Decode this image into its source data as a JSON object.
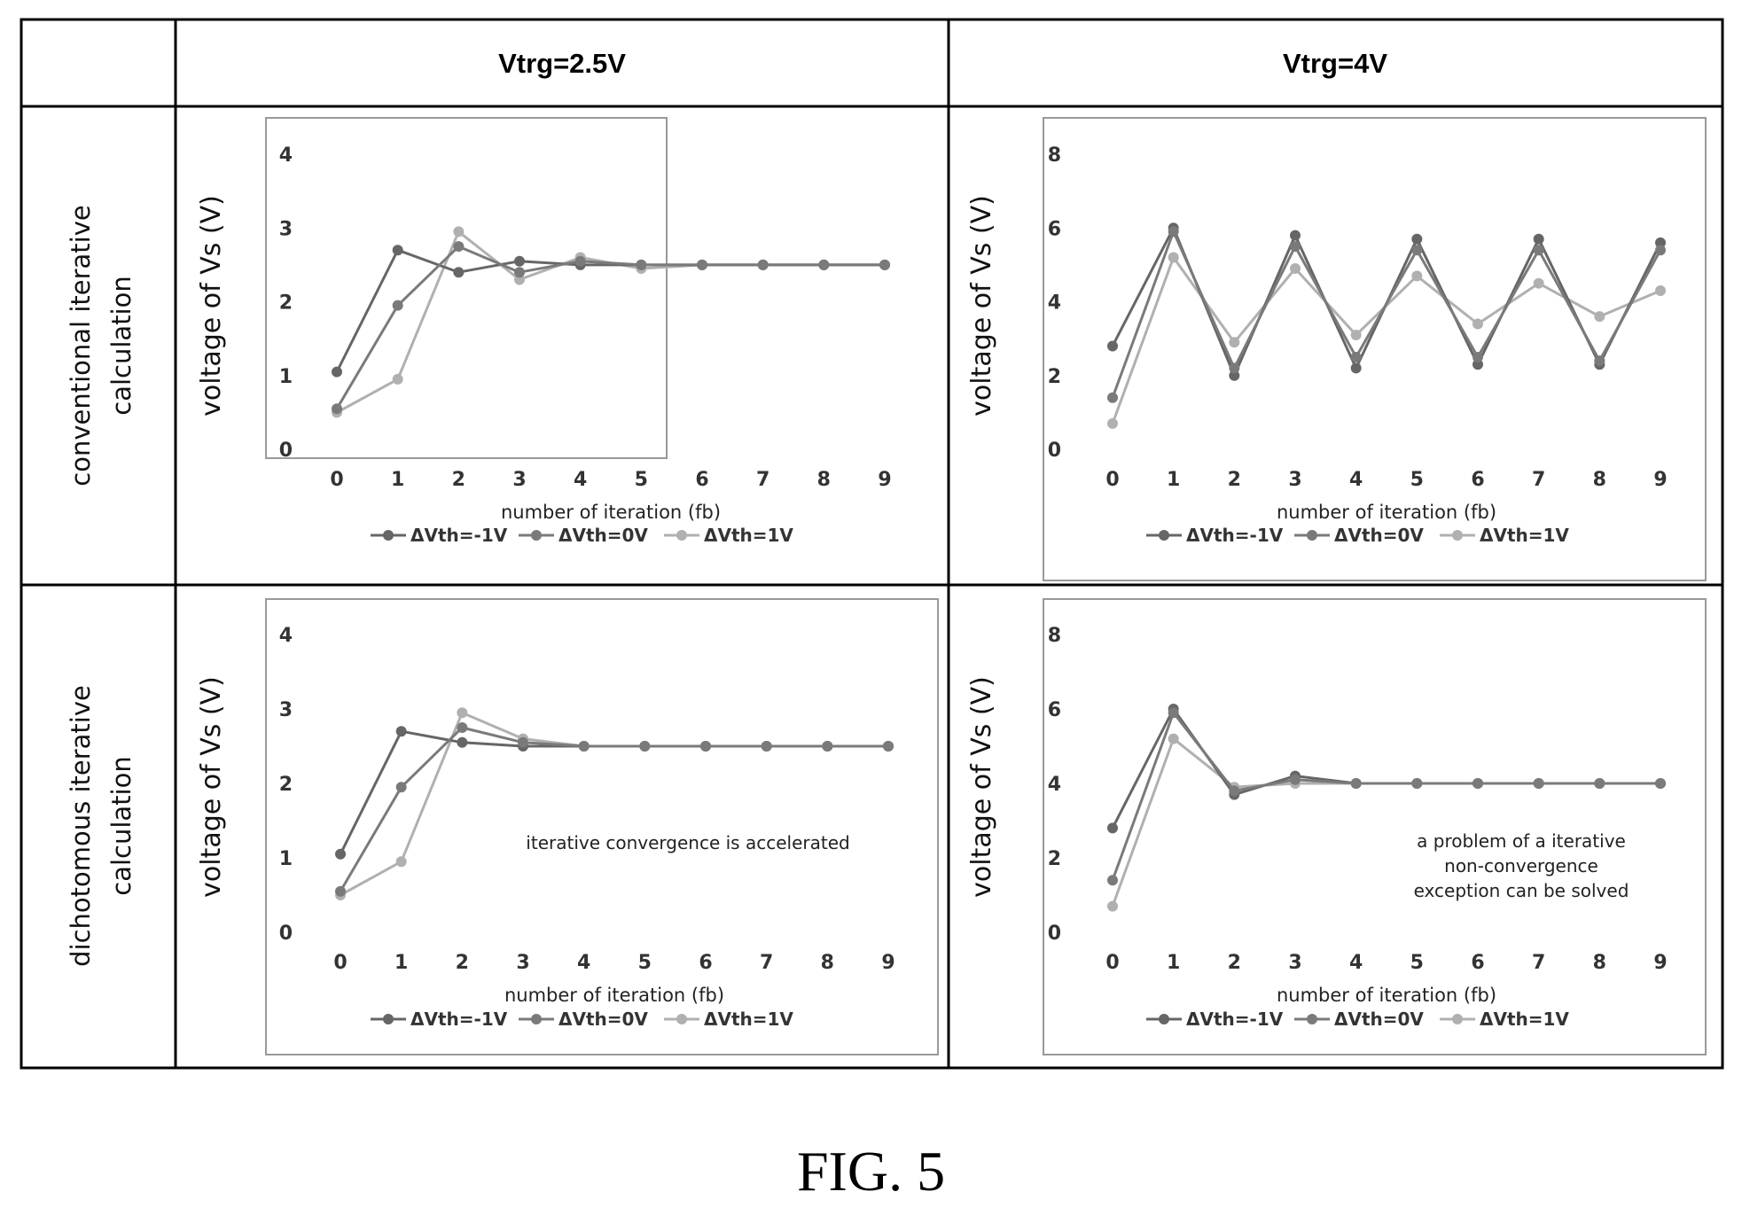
{
  "table": {
    "column_headers": [
      "Vtrg=2.5V",
      "Vtrg=4V"
    ],
    "row_headers": [
      [
        "conventional iterative",
        "calculation"
      ],
      [
        "dichotomous iterative",
        "calculation"
      ]
    ]
  },
  "figure_caption": "FIG. 5",
  "chart_data": [
    {
      "type": "line",
      "title": "",
      "xlabel": "number of iteration (fb)",
      "ylabel": "voltage of Vs (V)",
      "x": [
        0,
        1,
        2,
        3,
        4,
        5,
        6,
        7,
        8,
        9
      ],
      "xlim": [
        0,
        9
      ],
      "ylim": [
        0,
        4
      ],
      "yticks": [
        0,
        1,
        2,
        3,
        4
      ],
      "grid": false,
      "legend": "bottom",
      "annotation": "",
      "series": [
        {
          "name": "ΔVth=-1V",
          "color": "#666666",
          "values": [
            1.05,
            2.7,
            2.4,
            2.55,
            2.5,
            2.5,
            2.5,
            2.5,
            2.5,
            2.5
          ]
        },
        {
          "name": "ΔVth=0V",
          "color": "#7a7a7a",
          "values": [
            0.55,
            1.95,
            2.75,
            2.4,
            2.55,
            2.5,
            2.5,
            2.5,
            2.5,
            2.5
          ]
        },
        {
          "name": "ΔVth=1V",
          "color": "#b0b0b0",
          "values": [
            0.5,
            0.95,
            2.95,
            2.3,
            2.6,
            2.45,
            2.5,
            2.5,
            2.5,
            2.5
          ]
        }
      ]
    },
    {
      "type": "line",
      "title": "",
      "xlabel": "number of iteration (fb)",
      "ylabel": "voltage of Vs (V)",
      "x": [
        0,
        1,
        2,
        3,
        4,
        5,
        6,
        7,
        8,
        9
      ],
      "xlim": [
        0,
        9
      ],
      "ylim": [
        0,
        8
      ],
      "yticks": [
        0,
        2,
        4,
        6,
        8
      ],
      "grid": false,
      "legend": "bottom",
      "annotation": "",
      "series": [
        {
          "name": "ΔVth=-1V",
          "color": "#666666",
          "values": [
            2.8,
            6.0,
            2.0,
            5.8,
            2.2,
            5.7,
            2.3,
            5.7,
            2.3,
            5.6
          ]
        },
        {
          "name": "ΔVth=0V",
          "color": "#7a7a7a",
          "values": [
            1.4,
            5.9,
            2.2,
            5.5,
            2.5,
            5.4,
            2.5,
            5.4,
            2.4,
            5.4
          ]
        },
        {
          "name": "ΔVth=1V",
          "color": "#b0b0b0",
          "values": [
            0.7,
            5.2,
            2.9,
            4.9,
            3.1,
            4.7,
            3.4,
            4.5,
            3.6,
            4.3
          ]
        }
      ]
    },
    {
      "type": "line",
      "title": "",
      "xlabel": "number of iteration (fb)",
      "ylabel": "voltage of Vs (V)",
      "x": [
        0,
        1,
        2,
        3,
        4,
        5,
        6,
        7,
        8,
        9
      ],
      "xlim": [
        0,
        9
      ],
      "ylim": [
        0,
        4
      ],
      "yticks": [
        0,
        1,
        2,
        3,
        4
      ],
      "grid": false,
      "legend": "bottom",
      "annotation": "iterative convergence is accelerated",
      "series": [
        {
          "name": "ΔVth=-1V",
          "color": "#666666",
          "values": [
            1.05,
            2.7,
            2.55,
            2.5,
            2.5,
            2.5,
            2.5,
            2.5,
            2.5,
            2.5
          ]
        },
        {
          "name": "ΔVth=0V",
          "color": "#7a7a7a",
          "values": [
            0.55,
            1.95,
            2.75,
            2.55,
            2.5,
            2.5,
            2.5,
            2.5,
            2.5,
            2.5
          ]
        },
        {
          "name": "ΔVth=1V",
          "color": "#b0b0b0",
          "values": [
            0.5,
            0.95,
            2.95,
            2.6,
            2.5,
            2.5,
            2.5,
            2.5,
            2.5,
            2.5
          ]
        }
      ]
    },
    {
      "type": "line",
      "title": "",
      "xlabel": "number of iteration (fb)",
      "ylabel": "voltage of Vs (V)",
      "x": [
        0,
        1,
        2,
        3,
        4,
        5,
        6,
        7,
        8,
        9
      ],
      "xlim": [
        0,
        9
      ],
      "ylim": [
        0,
        8
      ],
      "yticks": [
        0,
        2,
        4,
        6,
        8
      ],
      "grid": false,
      "legend": "bottom",
      "annotation": "a problem of a iterative\nnon-convergence\nexception can be solved",
      "series": [
        {
          "name": "ΔVth=-1V",
          "color": "#666666",
          "values": [
            2.8,
            6.0,
            3.7,
            4.2,
            4.0,
            4.0,
            4.0,
            4.0,
            4.0,
            4.0
          ]
        },
        {
          "name": "ΔVth=0V",
          "color": "#7a7a7a",
          "values": [
            1.4,
            5.9,
            3.8,
            4.1,
            4.0,
            4.0,
            4.0,
            4.0,
            4.0,
            4.0
          ]
        },
        {
          "name": "ΔVth=1V",
          "color": "#b0b0b0",
          "values": [
            0.7,
            5.2,
            3.9,
            4.0,
            4.0,
            4.0,
            4.0,
            4.0,
            4.0,
            4.0
          ]
        }
      ]
    }
  ]
}
